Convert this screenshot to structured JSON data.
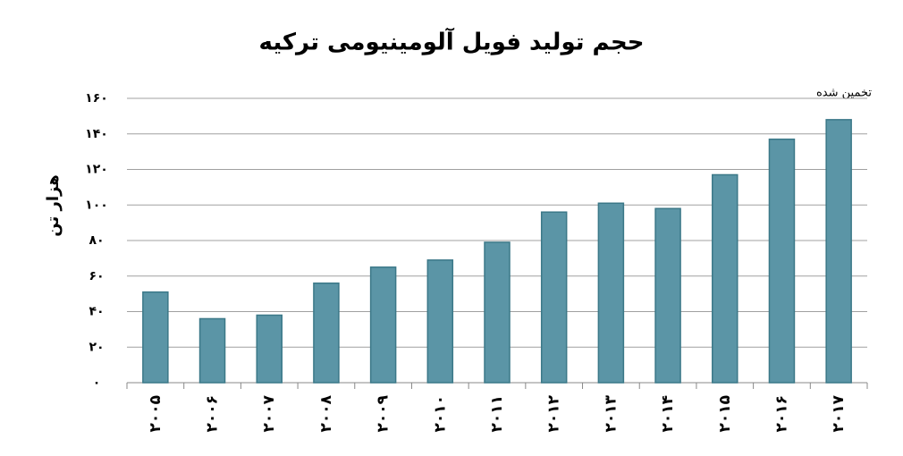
{
  "chart_data": {
    "type": "bar",
    "title": "حجم تولید فویل آلومینیومی ترکیه",
    "y_label": "هزار تن",
    "annotation": "تخمین شده",
    "categories": [
      "۲۰۰۵",
      "۲۰۰۶",
      "۲۰۰۷",
      "۲۰۰۸",
      "۲۰۰۹",
      "۲۰۱۰",
      "۲۰۱۱",
      "۲۰۱۲",
      "۲۰۱۳",
      "۲۰۱۴",
      "۲۰۱۵",
      "۲۰۱۶",
      "۲۰۱۷"
    ],
    "values": [
      51,
      36,
      38,
      56,
      65,
      69,
      79,
      96,
      101,
      98,
      117,
      137,
      148
    ],
    "color": "#5b95a6",
    "ylim": [
      0,
      160
    ],
    "yticks": [
      {
        "value": 0,
        "label": "۰"
      },
      {
        "value": 20,
        "label": "۲۰"
      },
      {
        "value": 40,
        "label": "۴۰"
      },
      {
        "value": 60,
        "label": "۶۰"
      },
      {
        "value": 80,
        "label": "۸۰"
      },
      {
        "value": 100,
        "label": "۱۰۰"
      },
      {
        "value": 120,
        "label": "۱۲۰"
      },
      {
        "value": 140,
        "label": "۱۴۰"
      },
      {
        "value": 160,
        "label": "۱۶۰"
      }
    ],
    "grid": true
  }
}
